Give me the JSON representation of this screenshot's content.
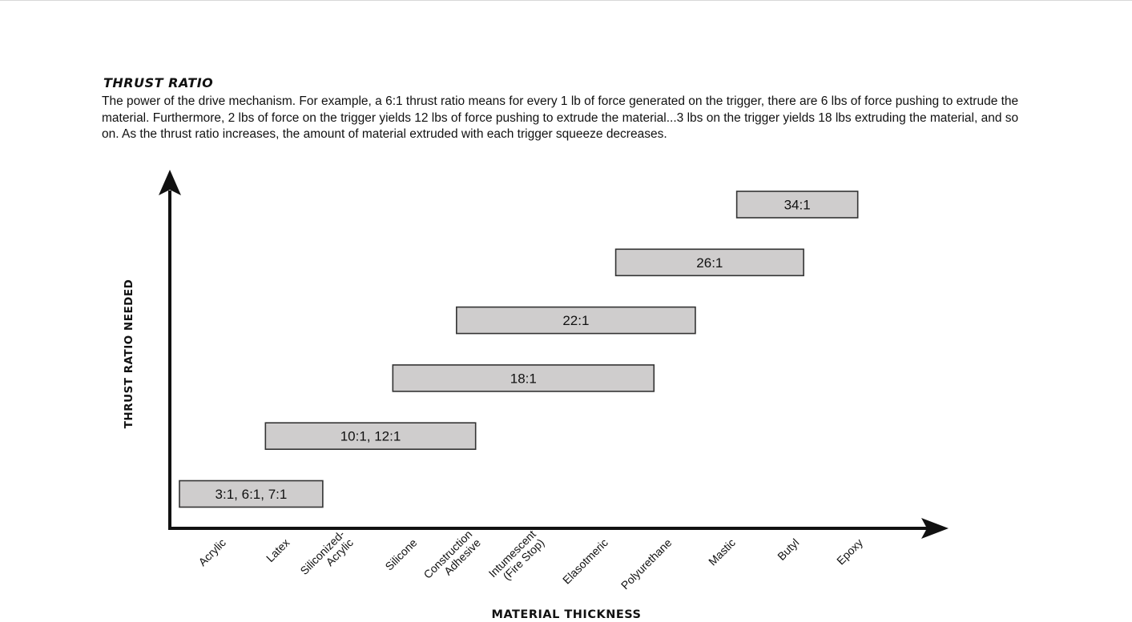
{
  "header": {
    "title": "THRUST RATIO",
    "description": "The power of the drive mechanism. For example, a 6:1 thrust ratio means for every 1 lb of force generated on the trigger, there are 6 lbs of force pushing to extrude the material.  Furthermore, 2 lbs of force on the trigger yields 12 lbs of force pushing to extrude the material...3 lbs on the trigger yields 18 lbs extruding the material, and so on.  As the thrust ratio increases, the amount of material extruded with each trigger squeeze decreases."
  },
  "chart_data": {
    "type": "range-bar",
    "xlabel": "MATERIAL THICKNESS",
    "ylabel": "THRUST RATIO NEEDED",
    "categories": [
      [
        "Acrylic"
      ],
      [
        "Latex"
      ],
      [
        "Siliconized-",
        "Acrylic"
      ],
      [
        "Silicone"
      ],
      [
        "Construction",
        "Adhesive"
      ],
      [
        "Intumescent",
        "(Fire Stop)"
      ],
      [
        "Elasotmeric"
      ],
      [
        "Polyurethane"
      ],
      [
        "Mastic"
      ],
      [
        "Butyl"
      ],
      [
        "Epoxy"
      ]
    ],
    "ranges": [
      {
        "label": "3:1, 6:1, 7:1",
        "start": 0,
        "end": 2.25,
        "level": 1
      },
      {
        "label": "10:1, 12:1",
        "start": 1.35,
        "end": 4.65,
        "level": 2
      },
      {
        "label": "18:1",
        "start": 3.35,
        "end": 7.45,
        "level": 3
      },
      {
        "label": "22:1",
        "start": 4.35,
        "end": 8.1,
        "level": 4
      },
      {
        "label": "26:1",
        "start": 6.85,
        "end": 9.8,
        "level": 5
      },
      {
        "label": "34:1",
        "start": 8.75,
        "end": 10.65,
        "level": 6
      }
    ],
    "colors": {
      "bar_fill": "#cfcdcd",
      "bar_stroke": "#333333",
      "axis": "#111111"
    }
  }
}
